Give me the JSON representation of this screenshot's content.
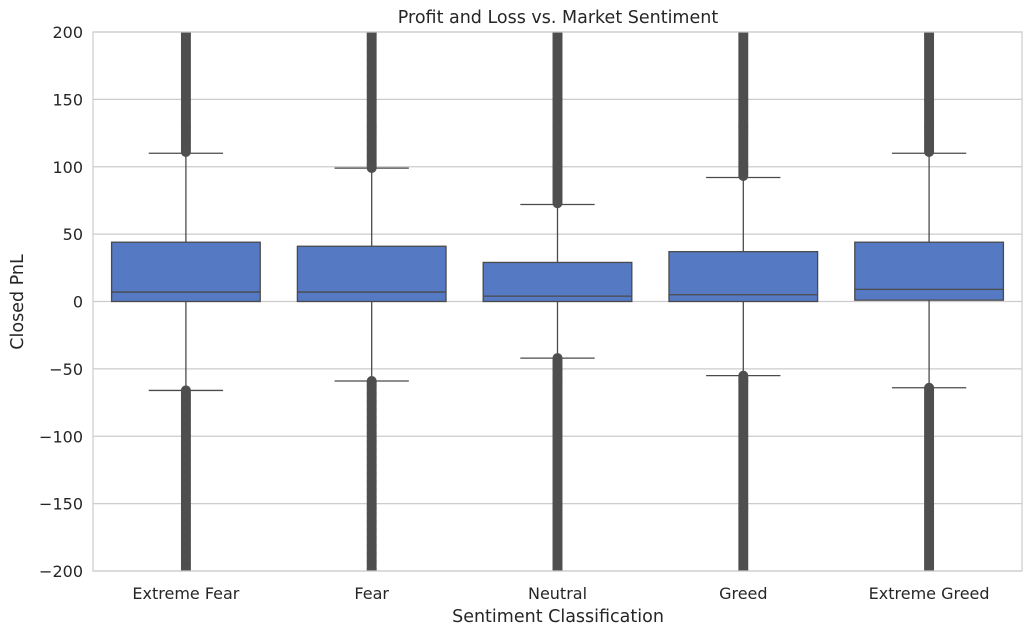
{
  "chart_data": {
    "type": "box",
    "title": "Profit and Loss vs. Market Sentiment",
    "xlabel": "Sentiment Classification",
    "ylabel": "Closed PnL",
    "ylim": [
      -200,
      200
    ],
    "yticks": [
      -200,
      -150,
      -100,
      -50,
      0,
      50,
      100,
      150,
      200
    ],
    "ytick_labels": [
      "−200",
      "−150",
      "−100",
      "−50",
      "0",
      "50",
      "100",
      "150",
      "200"
    ],
    "grid": true,
    "box_color": "#5579c3",
    "line_color": "#4a4a4a",
    "outlier_color": "#4f4f4f",
    "grid_color": "#cccccc",
    "categories": [
      "Extreme Fear",
      "Fear",
      "Neutral",
      "Greed",
      "Extreme Greed"
    ],
    "boxes": [
      {
        "category": "Extreme Fear",
        "whisker_low": -66,
        "q1": 0,
        "median": 7,
        "q3": 44,
        "whisker_high": 110,
        "outliers_low_from": -200,
        "outliers_low_to": -66,
        "outliers_high_from": 110,
        "outliers_high_to": 200
      },
      {
        "category": "Fear",
        "whisker_low": -59,
        "q1": 0,
        "median": 7,
        "q3": 41,
        "whisker_high": 99,
        "outliers_low_from": -200,
        "outliers_low_to": -59,
        "outliers_high_from": 99,
        "outliers_high_to": 200
      },
      {
        "category": "Neutral",
        "whisker_low": -42,
        "q1": 0,
        "median": 4,
        "q3": 29,
        "whisker_high": 72,
        "outliers_low_from": -200,
        "outliers_low_to": -42,
        "outliers_high_from": 72,
        "outliers_high_to": 200
      },
      {
        "category": "Greed",
        "whisker_low": -55,
        "q1": 0,
        "median": 5,
        "q3": 37,
        "whisker_high": 92,
        "outliers_low_from": -200,
        "outliers_low_to": -55,
        "outliers_high_from": 92,
        "outliers_high_to": 200
      },
      {
        "category": "Extreme Greed",
        "whisker_low": -64,
        "q1": 1,
        "median": 9,
        "q3": 44,
        "whisker_high": 110,
        "outliers_low_from": -200,
        "outliers_low_to": -64,
        "outliers_high_from": 110,
        "outliers_high_to": 200
      }
    ]
  }
}
